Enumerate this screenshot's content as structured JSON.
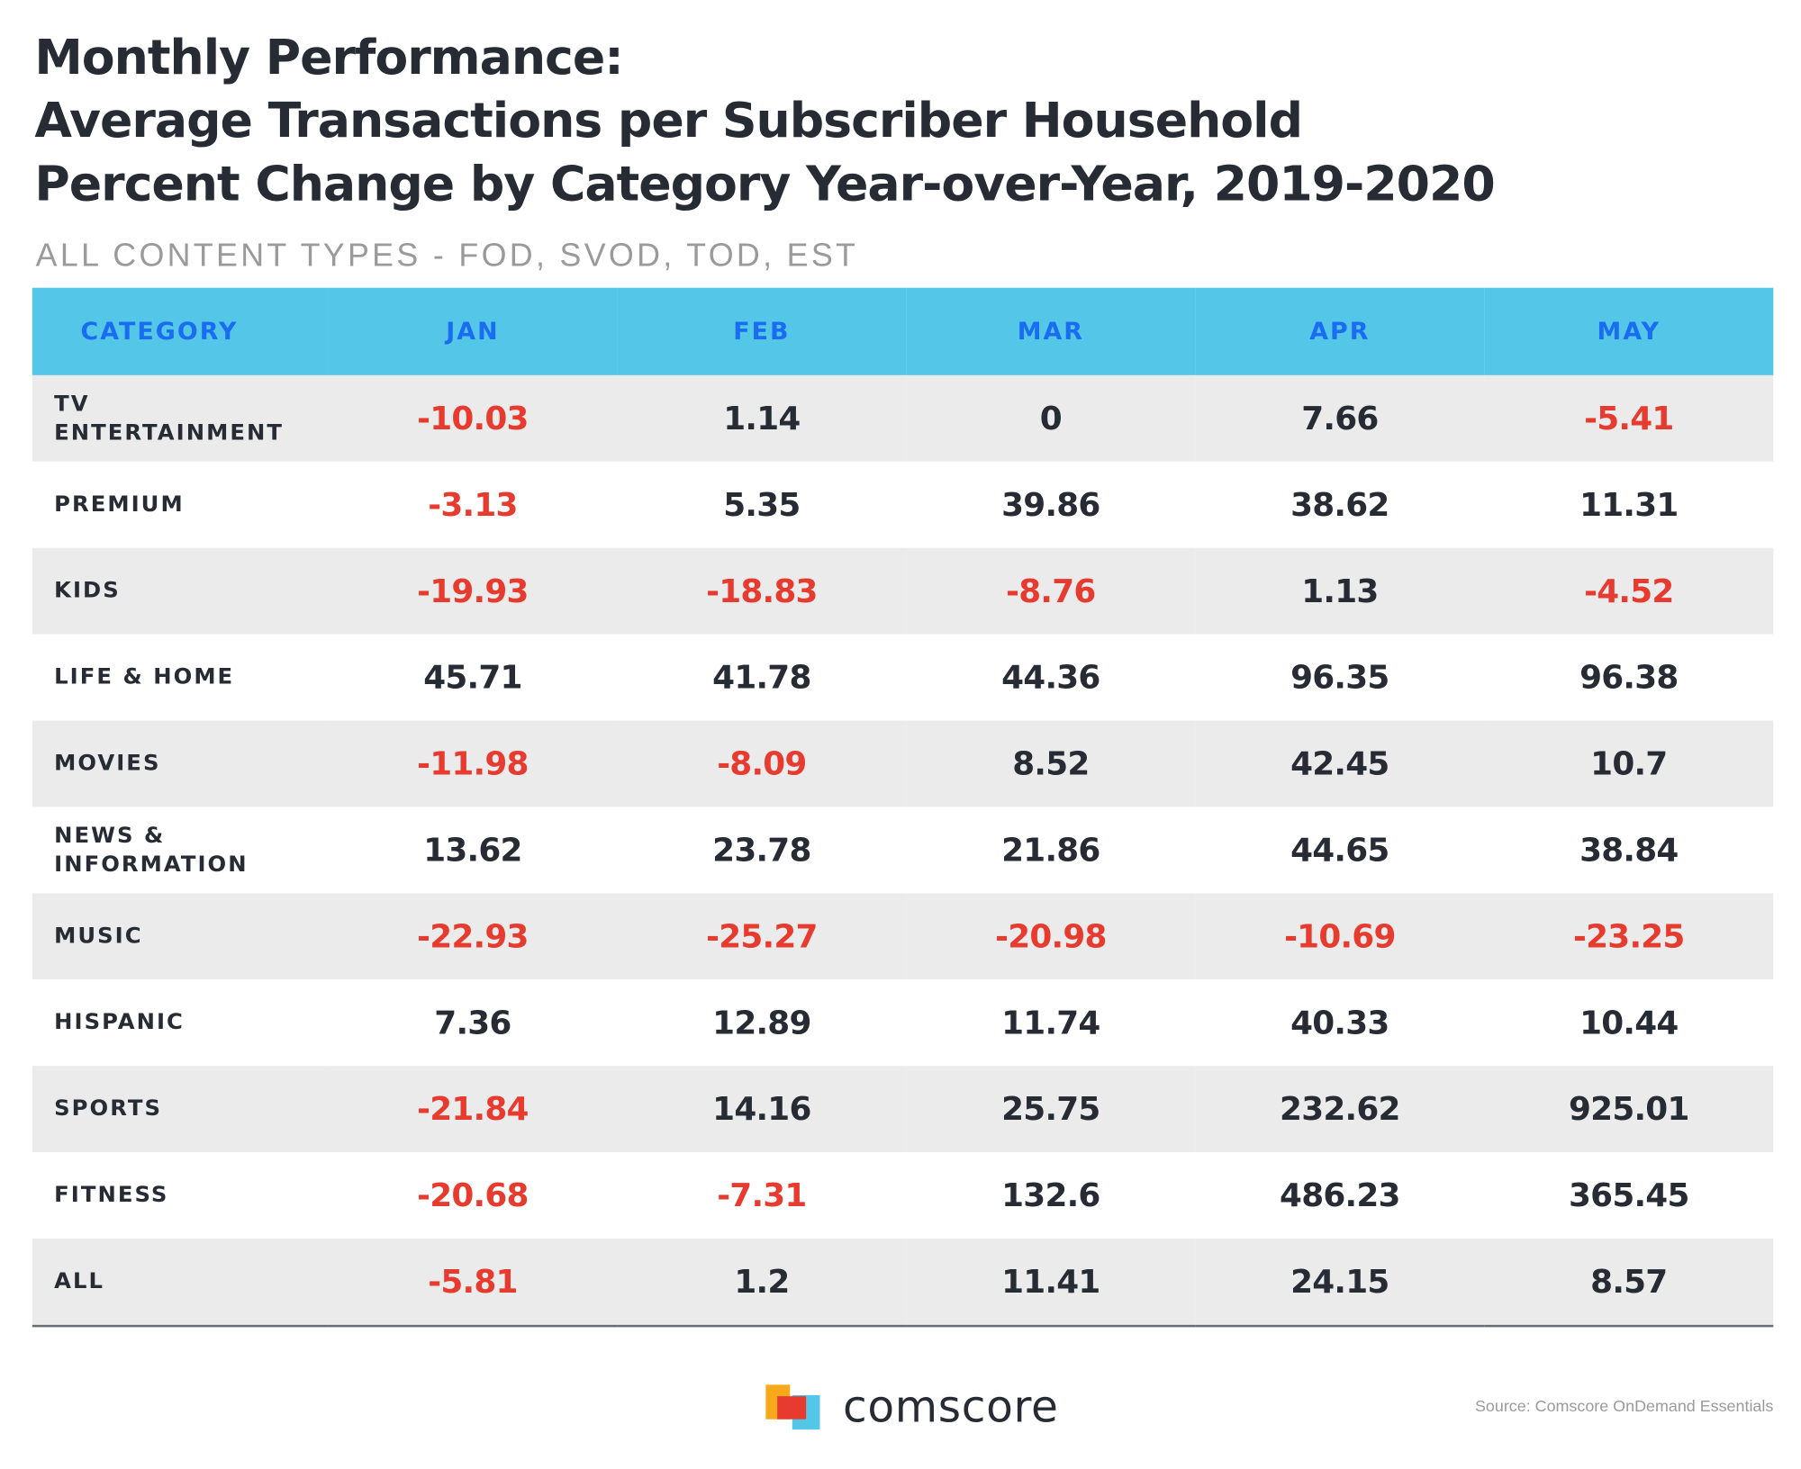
{
  "title_lines": [
    "Monthly Performance:",
    "Average Transactions per Subscriber Household",
    "Percent Change by Category Year-over-Year, 2019-2020"
  ],
  "subtitle": "ALL CONTENT TYPES - FOD, SVOD, TOD, EST",
  "colors": {
    "header_bg": "#54c6e8",
    "header_text": "#1a6cf0",
    "negative": "#e63b2e",
    "positive": "#262b34",
    "row_shade": "#ebebeb"
  },
  "chart_data": {
    "type": "table",
    "title": "Monthly Performance: Average Transactions per Subscriber Household Percent Change by Category Year-over-Year, 2019-2020",
    "subtitle": "ALL CONTENT TYPES - FOD, SVOD, TOD, EST",
    "columns": [
      "CATEGORY",
      "JAN",
      "FEB",
      "MAR",
      "APR",
      "MAY"
    ],
    "rows": [
      {
        "category": "TV ENTERTAINMENT",
        "category_lines": [
          "TV",
          "ENTERTAINMENT"
        ],
        "values": [
          -10.03,
          1.14,
          0,
          7.66,
          -5.41
        ],
        "labels": [
          "-10.03",
          "1.14",
          "0",
          "7.66",
          "-5.41"
        ]
      },
      {
        "category": "PREMIUM",
        "category_lines": [
          "PREMIUM"
        ],
        "values": [
          -3.13,
          5.35,
          39.86,
          38.62,
          11.31
        ],
        "labels": [
          "-3.13",
          "5.35",
          "39.86",
          "38.62",
          "11.31"
        ]
      },
      {
        "category": "KIDS",
        "category_lines": [
          "KIDS"
        ],
        "values": [
          -19.93,
          -18.83,
          -8.76,
          1.13,
          -4.52
        ],
        "labels": [
          "-19.93",
          "-18.83",
          "-8.76",
          "1.13",
          "-4.52"
        ]
      },
      {
        "category": "LIFE & HOME",
        "category_lines": [
          "LIFE & HOME"
        ],
        "values": [
          45.71,
          41.78,
          44.36,
          96.35,
          96.38
        ],
        "labels": [
          "45.71",
          "41.78",
          "44.36",
          "96.35",
          "96.38"
        ]
      },
      {
        "category": "MOVIES",
        "category_lines": [
          "MOVIES"
        ],
        "values": [
          -11.98,
          -8.09,
          8.52,
          42.45,
          10.7
        ],
        "labels": [
          "-11.98",
          "-8.09",
          "8.52",
          "42.45",
          "10.7"
        ]
      },
      {
        "category": "NEWS & INFORMATION",
        "category_lines": [
          "NEWS &",
          "INFORMATION"
        ],
        "values": [
          13.62,
          23.78,
          21.86,
          44.65,
          38.84
        ],
        "labels": [
          "13.62",
          "23.78",
          "21.86",
          "44.65",
          "38.84"
        ]
      },
      {
        "category": "MUSIC",
        "category_lines": [
          "MUSIC"
        ],
        "values": [
          -22.93,
          -25.27,
          -20.98,
          -10.69,
          -23.25
        ],
        "labels": [
          "-22.93",
          "-25.27",
          "-20.98",
          "-10.69",
          "-23.25"
        ]
      },
      {
        "category": "HISPANIC",
        "category_lines": [
          "HISPANIC"
        ],
        "values": [
          7.36,
          12.89,
          11.74,
          40.33,
          10.44
        ],
        "labels": [
          "7.36",
          "12.89",
          "11.74",
          "40.33",
          "10.44"
        ]
      },
      {
        "category": "SPORTS",
        "category_lines": [
          "SPORTS"
        ],
        "values": [
          -21.84,
          14.16,
          25.75,
          232.62,
          925.01
        ],
        "labels": [
          "-21.84",
          "14.16",
          "25.75",
          "232.62",
          "925.01"
        ]
      },
      {
        "category": "FITNESS",
        "category_lines": [
          "FITNESS"
        ],
        "values": [
          -20.68,
          -7.31,
          132.6,
          486.23,
          365.45
        ],
        "labels": [
          "-20.68",
          "-7.31",
          "132.6",
          "486.23",
          "365.45"
        ]
      },
      {
        "category": "ALL",
        "category_lines": [
          "ALL"
        ],
        "values": [
          -5.81,
          1.2,
          11.41,
          24.15,
          8.57
        ],
        "labels": [
          "-5.81",
          "1.2",
          "11.41",
          "24.15",
          "8.57"
        ]
      }
    ]
  },
  "footer": {
    "logo_text": "comscore",
    "source": "Source: Comscore OnDemand Essentials"
  }
}
